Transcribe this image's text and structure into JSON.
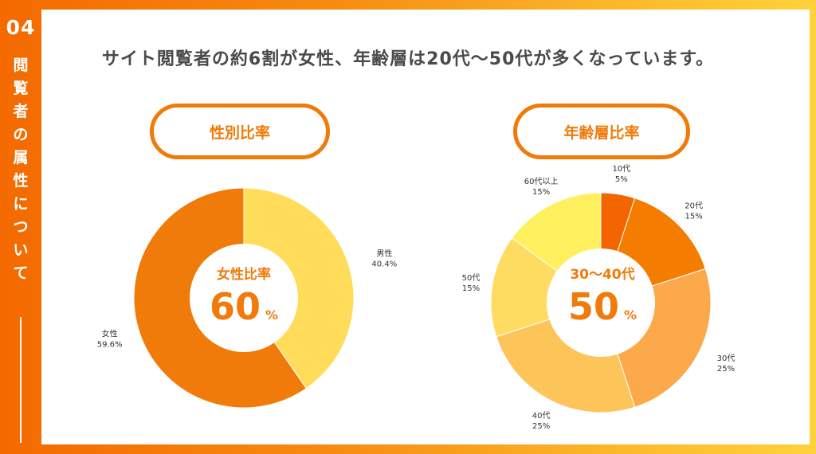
{
  "sidebar": {
    "section_number": "04",
    "section_title_chars": [
      "閲",
      "覧",
      "者",
      "の",
      "属",
      "性",
      "に",
      "つ",
      "い",
      "て"
    ]
  },
  "headline": "サイト閲覧者の約6割が女性、年齢層は20代〜50代が多くなっています。",
  "gender": {
    "pill_label": "性別比率",
    "center_label": "女性比率",
    "center_value": "60",
    "center_unit": "%"
  },
  "age": {
    "pill_label": "年齢層比率",
    "center_label": "30〜40代",
    "center_value": "50",
    "center_unit": "%"
  },
  "chart_data": [
    {
      "type": "pie",
      "donut": true,
      "categories": [
        "男性",
        "女性"
      ],
      "values": [
        40.4,
        59.6
      ],
      "value_labels": [
        "40.4%",
        "59.6%"
      ],
      "colors": [
        "#ffdd5a",
        "#f07a0a"
      ]
    },
    {
      "type": "pie",
      "donut": true,
      "categories": [
        "10代",
        "20代",
        "30代",
        "40代",
        "50代",
        "60代以上"
      ],
      "values": [
        5,
        15,
        25,
        25,
        15,
        15
      ],
      "value_labels": [
        "5%",
        "15%",
        "25%",
        "25%",
        "15%",
        "15%"
      ],
      "colors": [
        "#f26500",
        "#f47d00",
        "#fca94c",
        "#fdc45a",
        "#fedc62",
        "#fef05e"
      ]
    }
  ]
}
